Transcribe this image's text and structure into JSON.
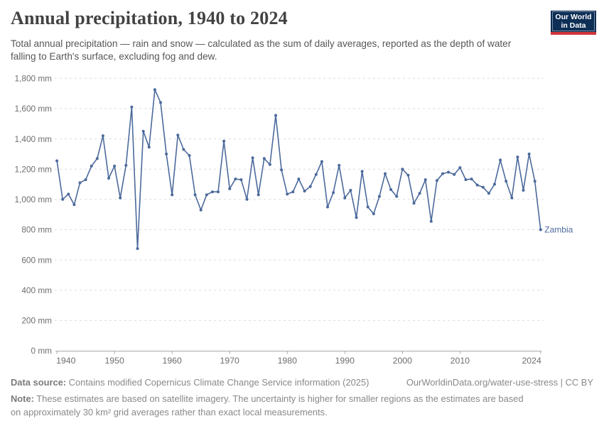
{
  "header": {
    "title": "Annual precipitation, 1940 to 2024",
    "subtitle": "Total annual precipitation — rain and snow — calculated as the sum of daily averages, reported as the depth of water falling to Earth's surface, excluding fog and dew."
  },
  "logo": {
    "line1": "Our World",
    "line2": "in Data",
    "bg_color": "#0d2e55",
    "accent_color": "#d2343c"
  },
  "chart_data": {
    "type": "line",
    "title": "Annual precipitation, 1940 to 2024",
    "entity_label": "Zambia",
    "line_color": "#4C6A9C",
    "xlabel": "",
    "ylabel": "",
    "xlim": [
      1940,
      2024
    ],
    "ylim": [
      0,
      1800
    ],
    "grid": "horizontal-dashed",
    "x_ticks": [
      1940,
      1950,
      1960,
      1970,
      1980,
      1990,
      2000,
      2010,
      2024
    ],
    "y_ticks": [
      0,
      200,
      400,
      600,
      800,
      1000,
      1200,
      1400,
      1600,
      1800
    ],
    "y_tick_labels": [
      "0 mm",
      "200 mm",
      "400 mm",
      "600 mm",
      "800 mm",
      "1,000 mm",
      "1,200 mm",
      "1,400 mm",
      "1,600 mm",
      "1,800 mm"
    ],
    "unit": "mm",
    "years": [
      1940,
      1941,
      1942,
      1943,
      1944,
      1945,
      1946,
      1947,
      1948,
      1949,
      1950,
      1951,
      1952,
      1953,
      1954,
      1955,
      1956,
      1957,
      1958,
      1959,
      1960,
      1961,
      1962,
      1963,
      1964,
      1965,
      1966,
      1967,
      1968,
      1969,
      1970,
      1971,
      1972,
      1973,
      1974,
      1975,
      1976,
      1977,
      1978,
      1979,
      1980,
      1981,
      1982,
      1983,
      1984,
      1985,
      1986,
      1987,
      1988,
      1989,
      1990,
      1991,
      1992,
      1993,
      1994,
      1995,
      1996,
      1997,
      1998,
      1999,
      2000,
      2001,
      2002,
      2003,
      2004,
      2005,
      2006,
      2007,
      2008,
      2009,
      2010,
      2011,
      2012,
      2013,
      2014,
      2015,
      2016,
      2017,
      2018,
      2019,
      2020,
      2021,
      2022,
      2023,
      2024
    ],
    "values": [
      1255,
      1000,
      1035,
      965,
      1110,
      1130,
      1220,
      1270,
      1420,
      1140,
      1220,
      1010,
      1225,
      1610,
      675,
      1450,
      1345,
      1725,
      1640,
      1300,
      1030,
      1425,
      1330,
      1290,
      1030,
      930,
      1030,
      1050,
      1050,
      1385,
      1070,
      1135,
      1130,
      1000,
      1275,
      1030,
      1270,
      1230,
      1555,
      1195,
      1035,
      1050,
      1135,
      1055,
      1085,
      1165,
      1250,
      950,
      1045,
      1225,
      1010,
      1060,
      880,
      1185,
      950,
      905,
      1020,
      1170,
      1065,
      1020,
      1200,
      1160,
      975,
      1040,
      1130,
      855,
      1125,
      1170,
      1180,
      1165,
      1210,
      1130,
      1135,
      1095,
      1080,
      1040,
      1100,
      1260,
      1120,
      1010,
      1280,
      1060,
      1300,
      1120,
      800
    ]
  },
  "footer": {
    "source_label": "Data source:",
    "source_text": " Contains modified Copernicus Climate Change Service information (2025)",
    "link": "OurWorldinData.org/water-use-stress | CC BY",
    "note_label": "Note:",
    "note_text": " These estimates are based on satellite imagery. The uncertainty is higher for smaller regions as the estimates are based on approximately 30 km² grid averages rather than exact local measurements."
  }
}
